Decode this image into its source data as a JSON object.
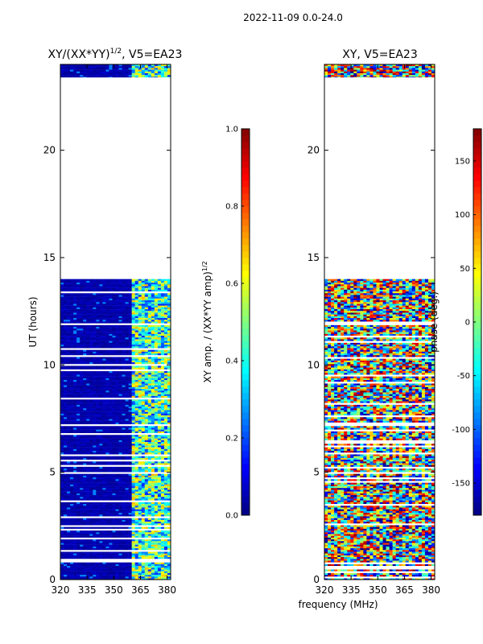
{
  "figure_title": "2022-11-09 0.0-24.0",
  "colors": {
    "background_fill": "#00008f",
    "frame": "#000000",
    "gap": "#ffffff",
    "jet": [
      "#00007f",
      "#0000ff",
      "#007fff",
      "#00ffff",
      "#7fff7f",
      "#ffff00",
      "#ff7f00",
      "#ff0000",
      "#7f0000"
    ]
  },
  "chart_data": [
    {
      "type": "heatmap",
      "title": "XY/(XX*YY)",
      "title_exponent": "1/2",
      "title_suffix": ", V5=EA23",
      "xlabel": "frequency (MHz)",
      "ylabel": "UT (hours)",
      "xlim": [
        320,
        382
      ],
      "ylim": [
        0,
        24
      ],
      "xticks": [
        320,
        335,
        350,
        365,
        380
      ],
      "yticks": [
        0,
        5,
        10,
        15,
        20
      ],
      "data_blocks": [
        {
          "ut_start": 0.0,
          "ut_end": 14.0,
          "note": "mostly low amplitude, brighter 360-382 MHz"
        },
        {
          "ut_start": 23.4,
          "ut_end": 24.0,
          "note": "mostly low amplitude"
        }
      ],
      "empty_range": [
        14.0,
        23.4
      ],
      "colorbar": {
        "label": "XY amp. / (XX*YY amp)",
        "label_exponent": "1/2",
        "range": [
          0.0,
          1.0
        ],
        "ticks": [
          "0.0",
          "0.2",
          "0.4",
          "0.6",
          "0.8",
          "1.0"
        ]
      }
    },
    {
      "type": "heatmap",
      "title": "XY, V5=EA23",
      "xlabel": "frequency (MHz)",
      "xlim": [
        320,
        382
      ],
      "ylim": [
        0,
        24
      ],
      "xticks": [
        320,
        335,
        350,
        365,
        380
      ],
      "yticks": [
        0,
        5,
        10,
        15,
        20
      ],
      "data_blocks": [
        {
          "ut_start": 0.0,
          "ut_end": 14.0,
          "note": "phase varies across full range"
        },
        {
          "ut_start": 23.4,
          "ut_end": 24.0,
          "note": "phase varies"
        }
      ],
      "empty_range": [
        14.0,
        23.4
      ],
      "colorbar": {
        "label": "phase (deg.)",
        "range": [
          -180,
          180
        ],
        "ticks": [
          "-150",
          "-100",
          "-50",
          "0",
          "50",
          "100",
          "150"
        ]
      }
    }
  ],
  "shared_xlabel": "frequency (MHz)"
}
